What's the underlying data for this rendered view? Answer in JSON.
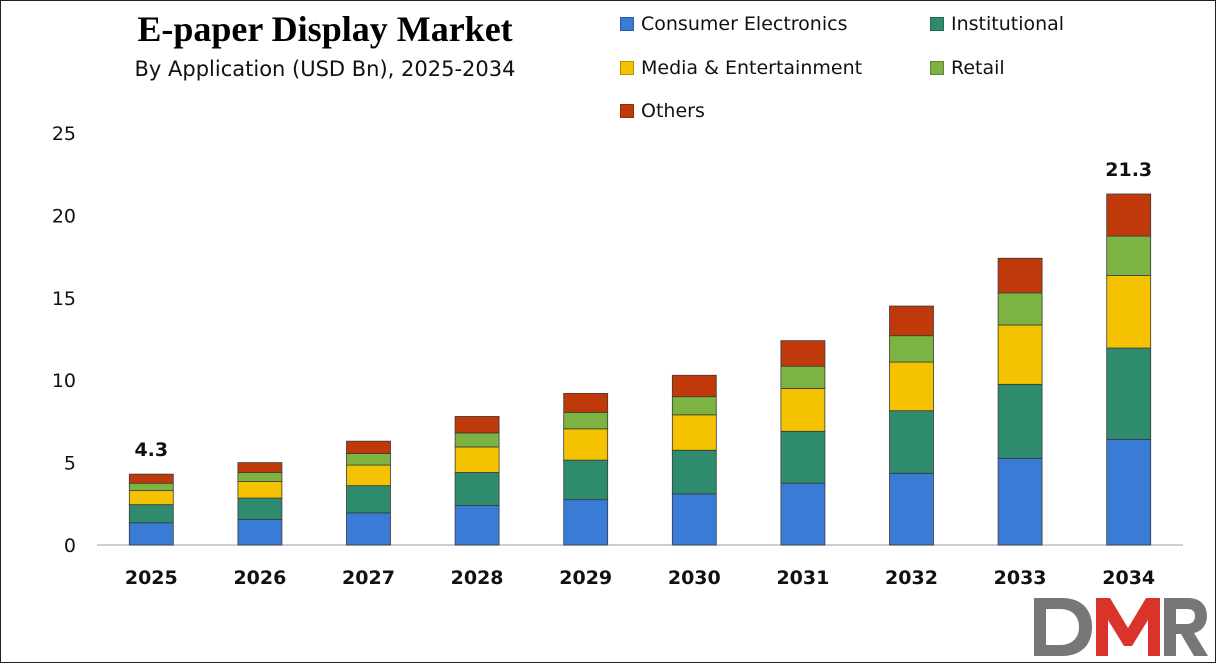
{
  "chart_data": {
    "type": "bar",
    "stacked": true,
    "title": "E-paper Display Market",
    "subtitle": "By Application (USD Bn), 2025-2034",
    "categories": [
      "2025",
      "2026",
      "2027",
      "2028",
      "2029",
      "2030",
      "2031",
      "2032",
      "2033",
      "2034"
    ],
    "ylim": [
      0,
      25
    ],
    "yticks": [
      "0",
      "5",
      "10",
      "15",
      "20",
      "25"
    ],
    "grid": false,
    "legend_position": "top-right",
    "series": [
      {
        "name": "Consumer Electronics",
        "color": "#3a7bd5",
        "values": [
          1.35,
          1.55,
          1.95,
          2.4,
          2.75,
          3.1,
          3.75,
          4.35,
          5.25,
          6.4
        ]
      },
      {
        "name": "Institutional",
        "color": "#2e8b6e",
        "values": [
          1.1,
          1.3,
          1.65,
          2.0,
          2.4,
          2.65,
          3.15,
          3.8,
          4.5,
          5.55
        ]
      },
      {
        "name": "Media & Entertainment",
        "color": "#f5c200",
        "values": [
          0.85,
          1.0,
          1.25,
          1.55,
          1.9,
          2.15,
          2.6,
          2.95,
          3.6,
          4.4
        ]
      },
      {
        "name": "Retail",
        "color": "#7cb342",
        "values": [
          0.45,
          0.55,
          0.7,
          0.85,
          1.0,
          1.1,
          1.35,
          1.6,
          1.95,
          2.4
        ]
      },
      {
        "name": "Others",
        "color": "#c0390b",
        "values": [
          0.55,
          0.6,
          0.75,
          1.0,
          1.15,
          1.3,
          1.55,
          1.8,
          2.1,
          2.55
        ]
      }
    ],
    "annotations": [
      {
        "category": "2025",
        "text": "4.3"
      },
      {
        "category": "2034",
        "text": "21.3"
      }
    ]
  },
  "logo": {
    "text": "DMR"
  }
}
